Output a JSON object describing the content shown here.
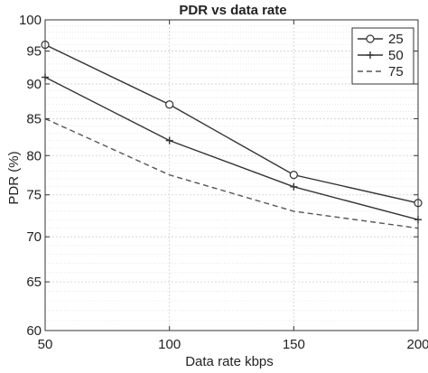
{
  "chart_data": {
    "type": "line",
    "title": "PDR vs data rate",
    "xlabel": "Data rate kbps",
    "ylabel": "PDR (%)",
    "x": [
      50,
      100,
      150,
      200
    ],
    "xlim": [
      50,
      200
    ],
    "ylim": [
      60,
      100
    ],
    "y_scale": "log",
    "x_ticks": [
      50,
      100,
      150,
      200
    ],
    "y_ticks": [
      60,
      65,
      70,
      75,
      80,
      85,
      90,
      95,
      100
    ],
    "grid": true,
    "legend_position": "top-right",
    "series": [
      {
        "name": "25",
        "values": [
          96,
          87,
          77.5,
          74
        ],
        "marker": "circle",
        "line": "solid"
      },
      {
        "name": "50",
        "values": [
          91,
          82,
          76,
          72
        ],
        "marker": "plus",
        "line": "solid"
      },
      {
        "name": "75",
        "values": [
          85,
          77.5,
          73,
          71
        ],
        "marker": "none",
        "line": "dashed"
      }
    ]
  }
}
